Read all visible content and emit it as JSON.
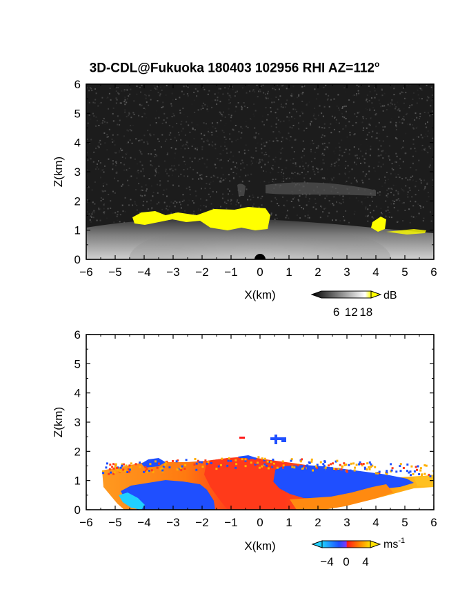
{
  "title": {
    "text": "3D-CDL@Fukuoka 180403 102956 RHI AZ=112",
    "superscript": "o"
  },
  "colors": {
    "snr_background": "#1a1a1a",
    "snr_high": "#ffff00",
    "vel_negative": "#1f4fff",
    "vel_positive": "#ff3a1a",
    "vel_strong_positive": "#ffb000",
    "vel_strong_negative": "#20d0ff"
  },
  "chart_data": [
    {
      "type": "heatmap",
      "panel": "snr",
      "xlabel": "X(km)",
      "ylabel": "Z(km)",
      "xlim": [
        -6,
        6
      ],
      "ylim": [
        0,
        6
      ],
      "xticks": [
        "-6",
        "-5",
        "-4",
        "-3",
        "-2",
        "-1",
        "0",
        "1",
        "2",
        "3",
        "4",
        "5",
        "6"
      ],
      "yticks": [
        "0",
        "1",
        "2",
        "3",
        "4",
        "5",
        "6"
      ],
      "colorbar": {
        "unit": "dB",
        "ticks": [
          "6",
          "12",
          "18"
        ],
        "range": [
          0,
          20
        ]
      },
      "features": {
        "boundary_layer_top_km": 1.2,
        "yellow_region_x_km": [
          -4.5,
          0.3
        ],
        "yellow_region_z_km": [
          0.9,
          1.8
        ],
        "yellow_patch_x_km": [
          3.8,
          4.3
        ],
        "faint_layer_x_km": [
          0.2,
          4.0
        ],
        "faint_layer_z_km": [
          2.1,
          2.5
        ]
      }
    },
    {
      "type": "heatmap",
      "panel": "velocity",
      "xlabel": "X(km)",
      "ylabel": "Z(km)",
      "xlim": [
        -6,
        6
      ],
      "ylim": [
        0,
        6
      ],
      "xticks": [
        "-6",
        "-5",
        "-4",
        "-3",
        "-2",
        "-1",
        "0",
        "1",
        "2",
        "3",
        "4",
        "5",
        "6"
      ],
      "yticks": [
        "0",
        "1",
        "2",
        "3",
        "4",
        "5",
        "6"
      ],
      "colorbar": {
        "unit": "ms",
        "unit_exponent": "-1",
        "ticks": [
          "-4",
          "0",
          "4"
        ],
        "range": [
          -5,
          5
        ]
      },
      "features": {
        "data_top_km": 1.7,
        "data_x_km": [
          -5.5,
          6
        ],
        "isolated_echo_x_km": [
          0.4,
          0.9
        ],
        "isolated_echo_z_km": 2.4
      }
    }
  ]
}
